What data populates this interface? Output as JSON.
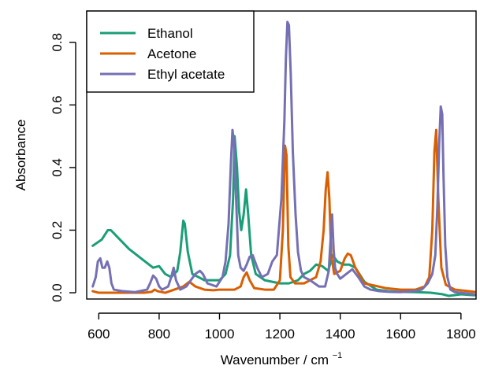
{
  "chart_data": {
    "type": "line",
    "title": "",
    "xlabel": "Wavenumber / cm",
    "xlabel_superscript": "−1",
    "ylabel": "Absorbance",
    "xlim": [
      560,
      1850
    ],
    "ylim": [
      -0.02,
      0.9
    ],
    "x_ticks": [
      {
        "value": 600,
        "label": "600"
      },
      {
        "value": 800,
        "label": "800"
      },
      {
        "value": 1000,
        "label": "1000"
      },
      {
        "value": 1200,
        "label": "1200"
      },
      {
        "value": 1400,
        "label": "1400"
      },
      {
        "value": 1600,
        "label": "1600"
      },
      {
        "value": 1800,
        "label": "1800"
      }
    ],
    "y_ticks": [
      {
        "value": 0.0,
        "label": "0.0"
      },
      {
        "value": 0.2,
        "label": "0.2"
      },
      {
        "value": 0.4,
        "label": "0.4"
      },
      {
        "value": 0.6,
        "label": "0.6"
      },
      {
        "value": 0.8,
        "label": "0.8"
      }
    ],
    "grid": false,
    "legend_position": "top-left",
    "series": [
      {
        "name": "Ethanol",
        "color": "#1b9e77",
        "x": [
          580,
          610,
          620,
          630,
          640,
          660,
          700,
          740,
          780,
          800,
          820,
          840,
          860,
          870,
          880,
          885,
          895,
          910,
          950,
          1000,
          1020,
          1035,
          1045,
          1050,
          1058,
          1065,
          1072,
          1080,
          1088,
          1095,
          1105,
          1120,
          1150,
          1200,
          1230,
          1260,
          1280,
          1300,
          1320,
          1340,
          1360,
          1375,
          1390,
          1410,
          1430,
          1450,
          1480,
          1520,
          1560,
          1600,
          1650,
          1700,
          1740,
          1760,
          1800,
          1845
        ],
        "y": [
          0.15,
          0.17,
          0.185,
          0.2,
          0.2,
          0.18,
          0.14,
          0.11,
          0.08,
          0.085,
          0.06,
          0.05,
          0.07,
          0.13,
          0.23,
          0.22,
          0.13,
          0.06,
          0.04,
          0.04,
          0.06,
          0.12,
          0.3,
          0.5,
          0.4,
          0.26,
          0.2,
          0.25,
          0.33,
          0.25,
          0.12,
          0.06,
          0.04,
          0.03,
          0.03,
          0.04,
          0.06,
          0.07,
          0.09,
          0.085,
          0.07,
          0.12,
          0.1,
          0.09,
          0.09,
          0.08,
          0.035,
          0.01,
          0.005,
          0.003,
          0.002,
          0.0,
          -0.005,
          -0.01,
          -0.005,
          -0.008
        ]
      },
      {
        "name": "Acetone",
        "color": "#d95f02",
        "x": [
          580,
          600,
          650,
          700,
          750,
          775,
          785,
          795,
          820,
          880,
          900,
          920,
          950,
          980,
          1000,
          1050,
          1070,
          1080,
          1090,
          1100,
          1115,
          1150,
          1180,
          1200,
          1210,
          1217,
          1222,
          1228,
          1235,
          1250,
          1280,
          1300,
          1320,
          1335,
          1345,
          1352,
          1358,
          1364,
          1370,
          1380,
          1400,
          1415,
          1425,
          1435,
          1450,
          1480,
          1550,
          1600,
          1650,
          1680,
          1695,
          1705,
          1712,
          1718,
          1725,
          1735,
          1750,
          1780,
          1845
        ],
        "y": [
          0.005,
          0.0,
          0.0,
          0.0,
          0.0,
          0.003,
          0.01,
          0.005,
          0.0,
          0.02,
          0.035,
          0.02,
          0.01,
          0.008,
          0.01,
          0.01,
          0.02,
          0.05,
          0.065,
          0.04,
          0.015,
          0.01,
          0.01,
          0.04,
          0.2,
          0.47,
          0.44,
          0.15,
          0.05,
          0.03,
          0.03,
          0.04,
          0.05,
          0.1,
          0.2,
          0.33,
          0.385,
          0.3,
          0.12,
          0.06,
          0.07,
          0.11,
          0.125,
          0.12,
          0.08,
          0.03,
          0.015,
          0.01,
          0.01,
          0.02,
          0.05,
          0.2,
          0.45,
          0.52,
          0.3,
          0.08,
          0.025,
          0.01,
          0.003
        ]
      },
      {
        "name": "Ethyl acetate",
        "color": "#7570b3",
        "x": [
          580,
          590,
          597,
          605,
          612,
          620,
          628,
          635,
          642,
          650,
          680,
          720,
          760,
          770,
          780,
          790,
          800,
          810,
          830,
          840,
          848,
          856,
          870,
          890,
          905,
          920,
          935,
          945,
          960,
          990,
          1010,
          1020,
          1030,
          1038,
          1043,
          1048,
          1055,
          1062,
          1070,
          1080,
          1090,
          1100,
          1110,
          1125,
          1140,
          1160,
          1175,
          1190,
          1205,
          1215,
          1220,
          1225,
          1230,
          1236,
          1243,
          1252,
          1260,
          1270,
          1280,
          1300,
          1330,
          1350,
          1362,
          1368,
          1373,
          1378,
          1383,
          1390,
          1400,
          1420,
          1440,
          1460,
          1480,
          1500,
          1530,
          1560,
          1600,
          1640,
          1670,
          1690,
          1705,
          1715,
          1722,
          1728,
          1733,
          1738,
          1742,
          1748,
          1755,
          1765,
          1780,
          1800,
          1845
        ],
        "y": [
          0.02,
          0.05,
          0.1,
          0.11,
          0.08,
          0.08,
          0.1,
          0.08,
          0.03,
          0.01,
          0.005,
          0.002,
          0.01,
          0.03,
          0.055,
          0.045,
          0.02,
          0.01,
          0.02,
          0.05,
          0.08,
          0.04,
          0.01,
          0.02,
          0.04,
          0.06,
          0.07,
          0.06,
          0.03,
          0.02,
          0.05,
          0.1,
          0.22,
          0.42,
          0.52,
          0.48,
          0.3,
          0.12,
          0.08,
          0.07,
          0.09,
          0.115,
          0.12,
          0.08,
          0.05,
          0.06,
          0.1,
          0.12,
          0.3,
          0.55,
          0.75,
          0.865,
          0.855,
          0.7,
          0.45,
          0.25,
          0.13,
          0.07,
          0.05,
          0.04,
          0.02,
          0.02,
          0.07,
          0.17,
          0.25,
          0.14,
          0.08,
          0.06,
          0.045,
          0.06,
          0.075,
          0.05,
          0.02,
          0.01,
          0.005,
          0.003,
          0.002,
          0.005,
          0.01,
          0.03,
          0.06,
          0.12,
          0.28,
          0.48,
          0.595,
          0.57,
          0.38,
          0.15,
          0.05,
          0.01,
          0.002,
          0.0,
          -0.005
        ]
      }
    ]
  }
}
